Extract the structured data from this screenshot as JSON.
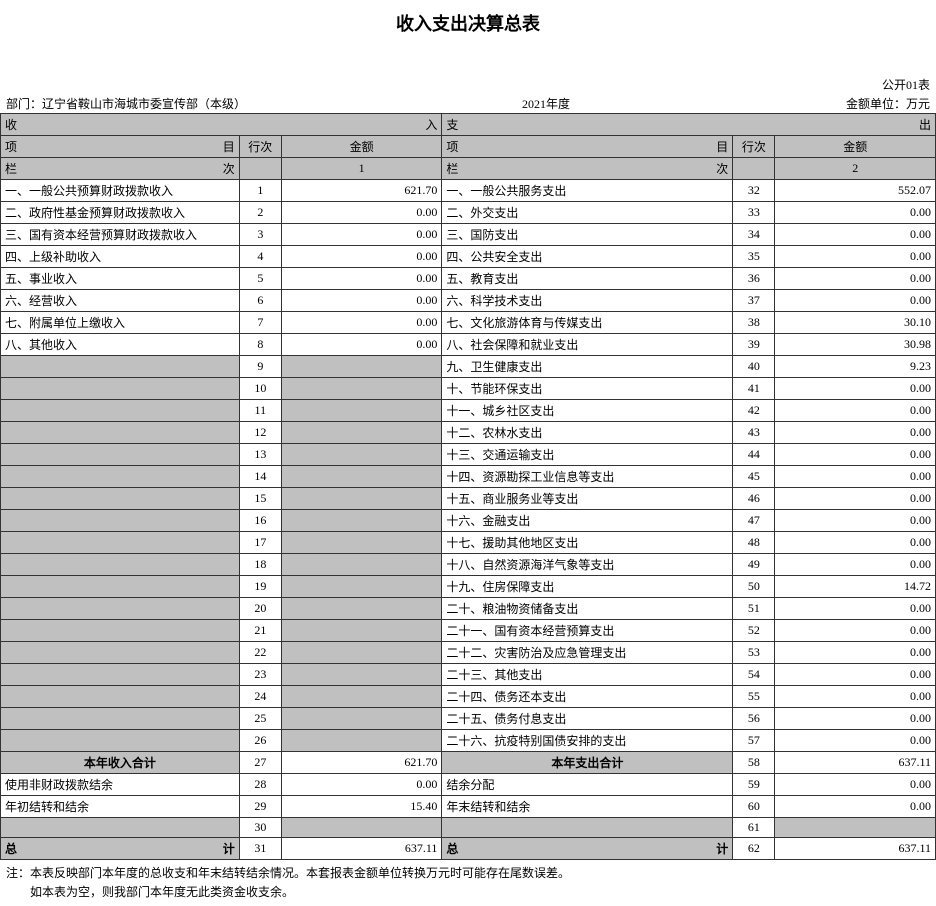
{
  "title": "收入支出决算总表",
  "form_no": "公开01表",
  "dept_label": "部门：",
  "dept_value": "辽宁省鞍山市海城市委宣传部（本级）",
  "year": "2021年度",
  "unit": "金额单位：万元",
  "income_header": {
    "left": "收",
    "right": "入"
  },
  "expend_header": {
    "left": "支",
    "right": "出"
  },
  "col_labels": {
    "item_l": "项",
    "item_r": "目",
    "rownum": "行次",
    "amount": "金额",
    "colnum_l": "栏",
    "colnum_r": "次",
    "col1": "1",
    "col2": "2"
  },
  "income_rows": [
    {
      "item": "一、一般公共预算财政拨款收入",
      "rn": "1",
      "amt": "621.70"
    },
    {
      "item": "二、政府性基金预算财政拨款收入",
      "rn": "2",
      "amt": "0.00"
    },
    {
      "item": "三、国有资本经营预算财政拨款收入",
      "rn": "3",
      "amt": "0.00"
    },
    {
      "item": "四、上级补助收入",
      "rn": "4",
      "amt": "0.00"
    },
    {
      "item": "五、事业收入",
      "rn": "5",
      "amt": "0.00"
    },
    {
      "item": "六、经营收入",
      "rn": "6",
      "amt": "0.00"
    },
    {
      "item": "七、附属单位上缴收入",
      "rn": "7",
      "amt": "0.00"
    },
    {
      "item": "八、其他收入",
      "rn": "8",
      "amt": "0.00"
    },
    {
      "item": "",
      "rn": "9",
      "amt": ""
    },
    {
      "item": "",
      "rn": "10",
      "amt": ""
    },
    {
      "item": "",
      "rn": "11",
      "amt": ""
    },
    {
      "item": "",
      "rn": "12",
      "amt": ""
    },
    {
      "item": "",
      "rn": "13",
      "amt": ""
    },
    {
      "item": "",
      "rn": "14",
      "amt": ""
    },
    {
      "item": "",
      "rn": "15",
      "amt": ""
    },
    {
      "item": "",
      "rn": "16",
      "amt": ""
    },
    {
      "item": "",
      "rn": "17",
      "amt": ""
    },
    {
      "item": "",
      "rn": "18",
      "amt": ""
    },
    {
      "item": "",
      "rn": "19",
      "amt": ""
    },
    {
      "item": "",
      "rn": "20",
      "amt": ""
    },
    {
      "item": "",
      "rn": "21",
      "amt": ""
    },
    {
      "item": "",
      "rn": "22",
      "amt": ""
    },
    {
      "item": "",
      "rn": "23",
      "amt": ""
    },
    {
      "item": "",
      "rn": "24",
      "amt": ""
    },
    {
      "item": "",
      "rn": "25",
      "amt": ""
    },
    {
      "item": "",
      "rn": "26",
      "amt": ""
    }
  ],
  "expend_rows": [
    {
      "item": "一、一般公共服务支出",
      "rn": "32",
      "amt": "552.07"
    },
    {
      "item": "二、外交支出",
      "rn": "33",
      "amt": "0.00"
    },
    {
      "item": "三、国防支出",
      "rn": "34",
      "amt": "0.00"
    },
    {
      "item": "四、公共安全支出",
      "rn": "35",
      "amt": "0.00"
    },
    {
      "item": "五、教育支出",
      "rn": "36",
      "amt": "0.00"
    },
    {
      "item": "六、科学技术支出",
      "rn": "37",
      "amt": "0.00"
    },
    {
      "item": "七、文化旅游体育与传媒支出",
      "rn": "38",
      "amt": "30.10"
    },
    {
      "item": "八、社会保障和就业支出",
      "rn": "39",
      "amt": "30.98"
    },
    {
      "item": "九、卫生健康支出",
      "rn": "40",
      "amt": "9.23"
    },
    {
      "item": "十、节能环保支出",
      "rn": "41",
      "amt": "0.00"
    },
    {
      "item": "十一、城乡社区支出",
      "rn": "42",
      "amt": "0.00"
    },
    {
      "item": "十二、农林水支出",
      "rn": "43",
      "amt": "0.00"
    },
    {
      "item": "十三、交通运输支出",
      "rn": "44",
      "amt": "0.00"
    },
    {
      "item": "十四、资源勘探工业信息等支出",
      "rn": "45",
      "amt": "0.00"
    },
    {
      "item": "十五、商业服务业等支出",
      "rn": "46",
      "amt": "0.00"
    },
    {
      "item": "十六、金融支出",
      "rn": "47",
      "amt": "0.00"
    },
    {
      "item": "十七、援助其他地区支出",
      "rn": "48",
      "amt": "0.00"
    },
    {
      "item": "十八、自然资源海洋气象等支出",
      "rn": "49",
      "amt": "0.00"
    },
    {
      "item": "十九、住房保障支出",
      "rn": "50",
      "amt": "14.72"
    },
    {
      "item": "二十、粮油物资储备支出",
      "rn": "51",
      "amt": "0.00"
    },
    {
      "item": "二十一、国有资本经营预算支出",
      "rn": "52",
      "amt": "0.00"
    },
    {
      "item": "二十二、灾害防治及应急管理支出",
      "rn": "53",
      "amt": "0.00"
    },
    {
      "item": "二十三、其他支出",
      "rn": "54",
      "amt": "0.00"
    },
    {
      "item": "二十四、债务还本支出",
      "rn": "55",
      "amt": "0.00"
    },
    {
      "item": "二十五、债务付息支出",
      "rn": "56",
      "amt": "0.00"
    },
    {
      "item": "二十六、抗疫特别国债安排的支出",
      "rn": "57",
      "amt": "0.00"
    }
  ],
  "subtotal": {
    "income_label": "本年收入合计",
    "income_rn": "27",
    "income_amt": "621.70",
    "expend_label": "本年支出合计",
    "expend_rn": "58",
    "expend_amt": "637.11"
  },
  "extra_rows": [
    {
      "l_item": "使用非财政拨款结余",
      "l_rn": "28",
      "l_amt": "0.00",
      "r_item": "结余分配",
      "r_rn": "59",
      "r_amt": "0.00"
    },
    {
      "l_item": "年初结转和结余",
      "l_rn": "29",
      "l_amt": "15.40",
      "r_item": "年末结转和结余",
      "r_rn": "60",
      "r_amt": "0.00"
    },
    {
      "l_item": "",
      "l_rn": "30",
      "l_amt": "",
      "r_item": "",
      "r_rn": "61",
      "r_amt": ""
    }
  ],
  "total": {
    "l_label_left": "总",
    "l_label_right": "计",
    "l_rn": "31",
    "l_amt": "637.11",
    "r_label_left": "总",
    "r_label_right": "计",
    "r_rn": "62",
    "r_amt": "637.11"
  },
  "notes": [
    "注：本表反映部门本年度的总收支和年末结转结余情况。本套报表金额单位转换万元时可能存在尾数误差。",
    "　　如本表为空，则我部门本年度无此类资金收支余。"
  ]
}
